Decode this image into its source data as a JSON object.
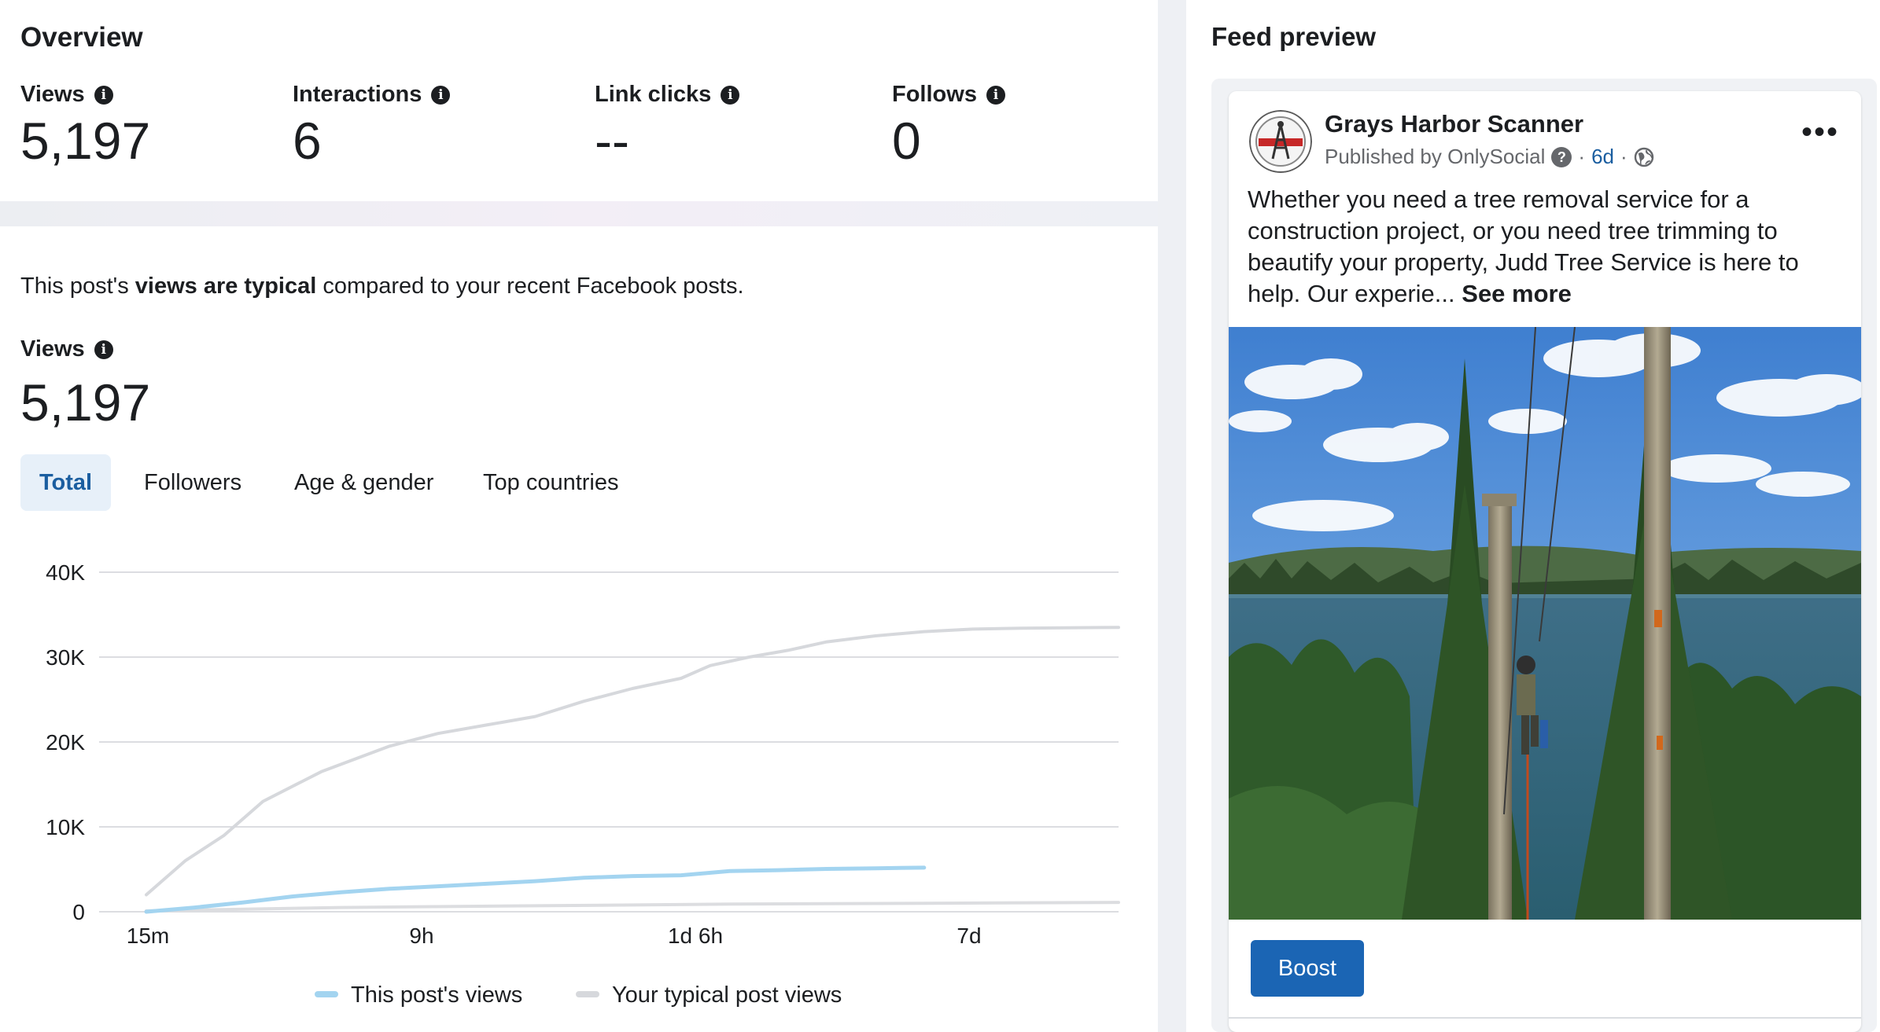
{
  "overview": {
    "title": "Overview",
    "metrics": [
      {
        "label": "Views",
        "value": "5,197"
      },
      {
        "label": "Interactions",
        "value": "6"
      },
      {
        "label": "Link clicks",
        "value": "--"
      },
      {
        "label": "Follows",
        "value": "0"
      }
    ]
  },
  "details": {
    "typical_prefix": "This post's ",
    "typical_bold": "views are typical",
    "typical_suffix": " compared to your recent Facebook posts.",
    "views_label": "Views",
    "views_value": "5,197",
    "tabs": [
      {
        "label": "Total",
        "active": true
      },
      {
        "label": "Followers",
        "active": false
      },
      {
        "label": "Age & gender",
        "active": false
      },
      {
        "label": "Top countries",
        "active": false
      }
    ]
  },
  "chart_data": {
    "type": "line",
    "y_ticks": [
      "40K",
      "30K",
      "20K",
      "10K",
      "0"
    ],
    "x_ticks": [
      "15m",
      "9h",
      "1d 6h",
      "7d"
    ],
    "ylim": [
      0,
      40000
    ],
    "grid": true,
    "legend_position": "bottom",
    "series": [
      {
        "name": "This post's views",
        "color": "#a3d4f0",
        "points": [
          [
            0,
            0
          ],
          [
            0.05,
            500
          ],
          [
            0.1,
            1100
          ],
          [
            0.15,
            1800
          ],
          [
            0.2,
            2300
          ],
          [
            0.25,
            2700
          ],
          [
            0.3,
            3000
          ],
          [
            0.35,
            3300
          ],
          [
            0.4,
            3600
          ],
          [
            0.45,
            4000
          ],
          [
            0.5,
            4200
          ],
          [
            0.55,
            4300
          ],
          [
            0.6,
            4800
          ],
          [
            0.65,
            4900
          ],
          [
            0.7,
            5050
          ],
          [
            0.75,
            5120
          ],
          [
            0.8,
            5197
          ]
        ]
      },
      {
        "name": "Your typical post views",
        "color": "#d6d8dc",
        "points": [
          [
            0,
            2000
          ],
          [
            0.04,
            6000
          ],
          [
            0.08,
            9000
          ],
          [
            0.12,
            13000
          ],
          [
            0.18,
            16500
          ],
          [
            0.25,
            19500
          ],
          [
            0.3,
            21000
          ],
          [
            0.35,
            22000
          ],
          [
            0.4,
            23000
          ],
          [
            0.45,
            24800
          ],
          [
            0.5,
            26300
          ],
          [
            0.55,
            27500
          ],
          [
            0.58,
            29000
          ],
          [
            0.62,
            30000
          ],
          [
            0.66,
            30800
          ],
          [
            0.7,
            31800
          ],
          [
            0.75,
            32500
          ],
          [
            0.8,
            33000
          ],
          [
            0.85,
            33300
          ],
          [
            0.9,
            33400
          ],
          [
            1.0,
            33500
          ]
        ]
      },
      {
        "name": "",
        "color": "#dcdde0",
        "points": [
          [
            0,
            100
          ],
          [
            0.2,
            500
          ],
          [
            0.4,
            700
          ],
          [
            0.6,
            900
          ],
          [
            0.8,
            1000
          ],
          [
            1.0,
            1100
          ]
        ]
      }
    ],
    "x_positions_note": "x values are fractions of the visible time window"
  },
  "feed": {
    "title": "Feed preview",
    "page_name": "Grays Harbor Scanner",
    "published_by": "Published by OnlySocial",
    "age": "6d",
    "post_text": "Whether you need a tree removal service for a construction project, or you need tree trimming to beautify your property, Judd Tree Service is here to help. Our experie...",
    "see_more": "See more",
    "boost_label": "Boost",
    "more_icon": "more-dots-icon",
    "help_icon": "question-icon",
    "audience_icon": "globe-icon"
  }
}
